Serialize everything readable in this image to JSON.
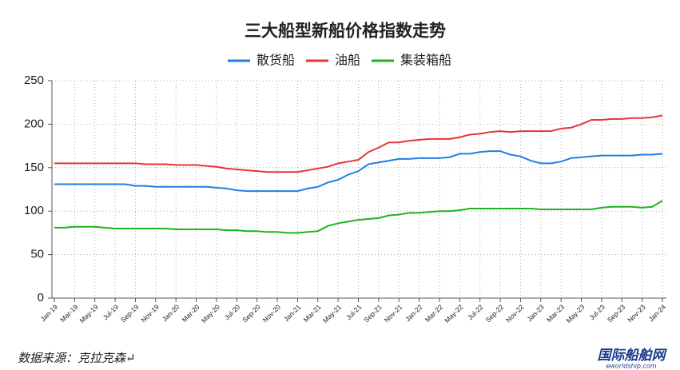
{
  "chart_data": {
    "type": "line",
    "title": "三大船型新船价格指数走势",
    "categories": [
      "Jan-19",
      null,
      "Mar-19",
      null,
      "May-19",
      null,
      "Jul-19",
      null,
      "Sep-19",
      null,
      "Nov-19",
      null,
      "Jan-20",
      null,
      "Mar-20",
      null,
      "May-20",
      null,
      "Jul-20",
      null,
      "Sep-20",
      null,
      "Nov-20",
      null,
      "Jan-21",
      null,
      "Mar-21",
      null,
      "May-21",
      null,
      "Jul-21",
      null,
      "Sep-21",
      null,
      "Nov-21",
      null,
      "Jan-22",
      null,
      "Mar-22",
      null,
      "May-22",
      null,
      "Jul-22",
      null,
      "Sep-22",
      null,
      "Nov-22",
      null,
      "Jan-23",
      null,
      "Mar-23",
      null,
      "May-23",
      null,
      "Jul-23",
      null,
      "Sep-23",
      null,
      "Nov-23",
      null,
      "Jan-24"
    ],
    "series": [
      {
        "name": "散货船",
        "color": "#1f7fe6",
        "values": [
          131,
          131,
          131,
          131,
          131,
          131,
          131,
          131,
          129,
          129,
          128,
          128,
          128,
          128,
          128,
          128,
          127,
          126,
          124,
          123,
          123,
          123,
          123,
          123,
          123,
          126,
          128,
          133,
          136,
          142,
          146,
          154,
          156,
          158,
          160,
          160,
          161,
          161,
          161,
          162,
          166,
          166,
          168,
          169,
          169,
          165,
          163,
          158,
          155,
          155,
          157,
          161,
          162,
          163,
          164,
          164,
          164,
          164,
          165,
          165,
          166
        ]
      },
      {
        "name": "油船",
        "color": "#e83434",
        "values": [
          155,
          155,
          155,
          155,
          155,
          155,
          155,
          155,
          155,
          154,
          154,
          154,
          153,
          153,
          153,
          152,
          151,
          149,
          148,
          147,
          146,
          145,
          145,
          145,
          145,
          147,
          149,
          151,
          155,
          157,
          159,
          168,
          173,
          179,
          179,
          181,
          182,
          183,
          183,
          183,
          185,
          188,
          189,
          191,
          192,
          191,
          192,
          192,
          192,
          192,
          195,
          196,
          200,
          205,
          205,
          206,
          206,
          207,
          207,
          208,
          210
        ]
      },
      {
        "name": "集装箱船",
        "color": "#1db31d",
        "values": [
          81,
          81,
          82,
          82,
          82,
          81,
          80,
          80,
          80,
          80,
          80,
          80,
          79,
          79,
          79,
          79,
          79,
          78,
          78,
          77,
          77,
          76,
          76,
          75,
          75,
          76,
          77,
          83,
          86,
          88,
          90,
          91,
          92,
          95,
          96,
          98,
          98,
          99,
          100,
          100,
          101,
          103,
          103,
          103,
          103,
          103,
          103,
          103,
          102,
          102,
          102,
          102,
          102,
          102,
          104,
          105,
          105,
          105,
          104,
          105,
          112
        ]
      }
    ],
    "ylim": [
      0,
      250
    ],
    "yticks": [
      0,
      50,
      100,
      150,
      200,
      250
    ],
    "grid": true,
    "legend": "top"
  },
  "source": "数据来源：克拉克森↵",
  "watermark": {
    "name": "国际船舶网",
    "url": "eworldship.com"
  }
}
